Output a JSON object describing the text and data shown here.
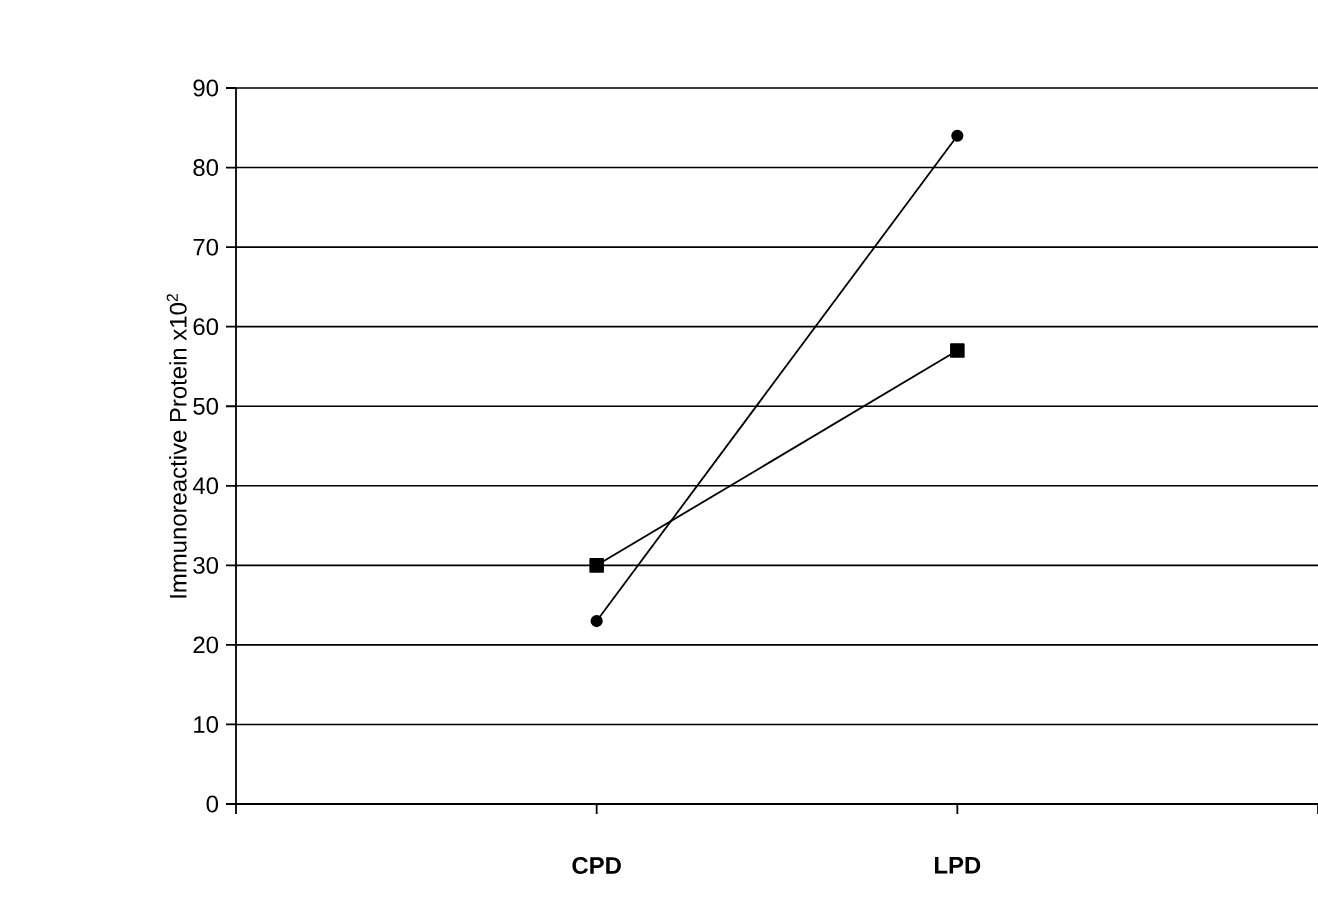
{
  "chart_data": {
    "type": "line",
    "ylabel": "Immunoreactive Protein x10$^{2}$",
    "categories": [
      "CPD",
      "LPD"
    ],
    "series": [
      {
        "color": "#000000",
        "marker": "circle",
        "values": [
          23,
          84
        ]
      },
      {
        "color": "#000000",
        "marker": "square",
        "values": [
          30,
          57
        ]
      }
    ],
    "ylim": [
      0,
      90
    ],
    "yticks": [
      0,
      10,
      20,
      30,
      40,
      50,
      60,
      70,
      80,
      90
    ],
    "grid": "y",
    "line_style": "solid"
  }
}
